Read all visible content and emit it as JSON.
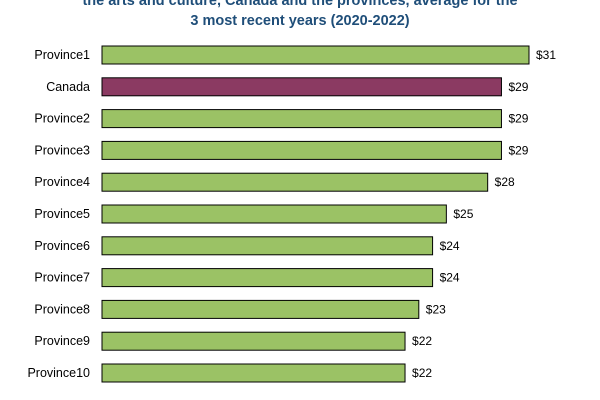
{
  "chart_data": {
    "type": "bar",
    "orientation": "horizontal",
    "title_lines": [
      "the arts and culture, Canada and the provinces, average for the",
      "3 most recent years (2020-2022)"
    ],
    "categories": [
      "Province1",
      "Canada",
      "Province2",
      "Province3",
      "Province4",
      "Province5",
      "Province6",
      "Province7",
      "Province8",
      "Province9",
      "Province10"
    ],
    "values": [
      31,
      29,
      29,
      29,
      28,
      25,
      24,
      24,
      23,
      22,
      22
    ],
    "value_labels": [
      "$31",
      "$29",
      "$29",
      "$29",
      "$28",
      "$25",
      "$24",
      "$24",
      "$23",
      "$22",
      "$22"
    ],
    "xlim": [
      0,
      31
    ],
    "grid": false,
    "colors": {
      "default": "#9bc265",
      "highlight": "#8b3a62",
      "edge": "#000000",
      "title": "#1f4e79"
    },
    "highlight_category": "Canada"
  }
}
